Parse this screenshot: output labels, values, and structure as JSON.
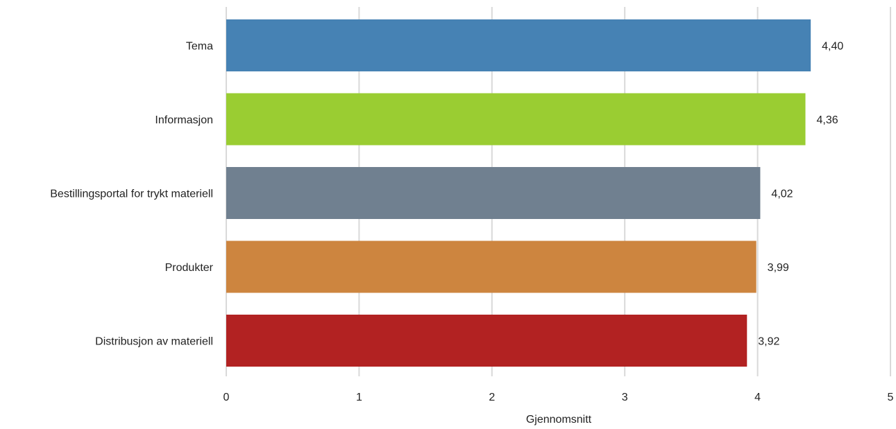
{
  "chart_data": {
    "type": "bar",
    "orientation": "horizontal",
    "categories": [
      "Tema",
      "Informasjon",
      "Bestillingsportal for trykt materiell",
      "Produkter",
      "Distribusjon av materiell"
    ],
    "values": [
      4.4,
      4.36,
      4.02,
      3.99,
      3.92
    ],
    "data_labels": [
      "4,40",
      "4,36",
      "4,02",
      "3,99",
      "3,92"
    ],
    "colors": [
      "#4682b4",
      "#9acd32",
      "#708090",
      "#cd853f",
      "#b22222"
    ],
    "xlabel": "Gjennomsnitt",
    "ylabel": "",
    "xlim": [
      0,
      5
    ],
    "xticks": [
      0,
      1,
      2,
      3,
      4,
      5
    ],
    "xtick_labels": [
      "0",
      "1",
      "2",
      "3",
      "4",
      "5"
    ],
    "grid": "vertical",
    "grid_color": "#d9d9d9",
    "legend": "none"
  }
}
